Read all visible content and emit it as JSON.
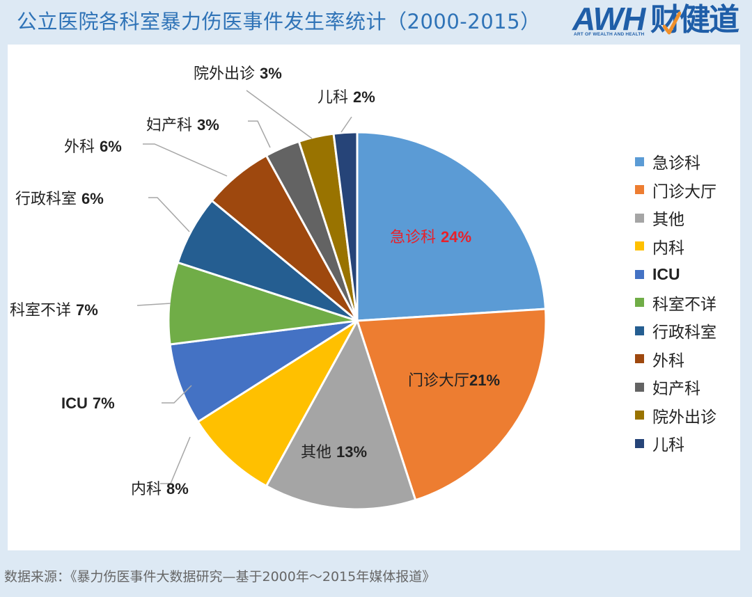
{
  "title": "公立医院各科室暴力伤医事件发生率统计（2000-2015）",
  "logo": {
    "latin": "AWH",
    "chinese": "财健道",
    "tagline": "ART OF WEALTH AND HEALTH",
    "brand_color": "#1f5ea8",
    "accent_color": "#f0902a"
  },
  "source_note": "数据来源：《暴力伤医事件大数据研究—基于2000年～2015年媒体报道》",
  "chart_data": {
    "type": "pie",
    "title": "公立医院各科室暴力伤医事件发生率统计（2000-2015）",
    "start_angle": "12 o'clock",
    "direction": "clockwise",
    "legend_position": "right",
    "categories": [
      "急诊科",
      "门诊大厅",
      "其他",
      "内科",
      "ICU",
      "科室不详",
      "行政科室",
      "外科",
      "妇产科",
      "院外出诊",
      "儿科"
    ],
    "values": [
      24,
      21,
      13,
      8,
      7,
      7,
      6,
      6,
      3,
      3,
      2
    ],
    "unit": "%",
    "colors": [
      "#5b9bd5",
      "#ed7d31",
      "#a5a5a5",
      "#ffc000",
      "#4472c4",
      "#70ad47",
      "#255e91",
      "#9e480e",
      "#636363",
      "#997300",
      "#264478"
    ],
    "data_labels": [
      {
        "name": "急诊科",
        "pct": "24%",
        "color": "#e8202a"
      },
      {
        "name": "门诊大厅",
        "pct": "21%",
        "color": "#222222"
      },
      {
        "name": "其他",
        "pct": "13%",
        "color": "#222222"
      },
      {
        "name": "内科",
        "pct": "8%",
        "color": "#222222"
      },
      {
        "name": "ICU",
        "pct": "7%",
        "color": "#222222"
      },
      {
        "name": "科室不详",
        "pct": "7%",
        "color": "#222222"
      },
      {
        "name": "行政科室",
        "pct": "6%",
        "color": "#222222"
      },
      {
        "name": "外科",
        "pct": "6%",
        "color": "#222222"
      },
      {
        "name": "妇产科",
        "pct": "3%",
        "color": "#222222"
      },
      {
        "name": "院外出诊",
        "pct": "3%",
        "color": "#222222"
      },
      {
        "name": "儿科",
        "pct": "2%",
        "color": "#222222"
      }
    ]
  },
  "legend": {
    "items": [
      "急诊科",
      "门诊大厅",
      "其他",
      "内科",
      "ICU",
      "科室不详",
      "行政科室",
      "外科",
      "妇产科",
      "院外出诊",
      "儿科"
    ]
  }
}
